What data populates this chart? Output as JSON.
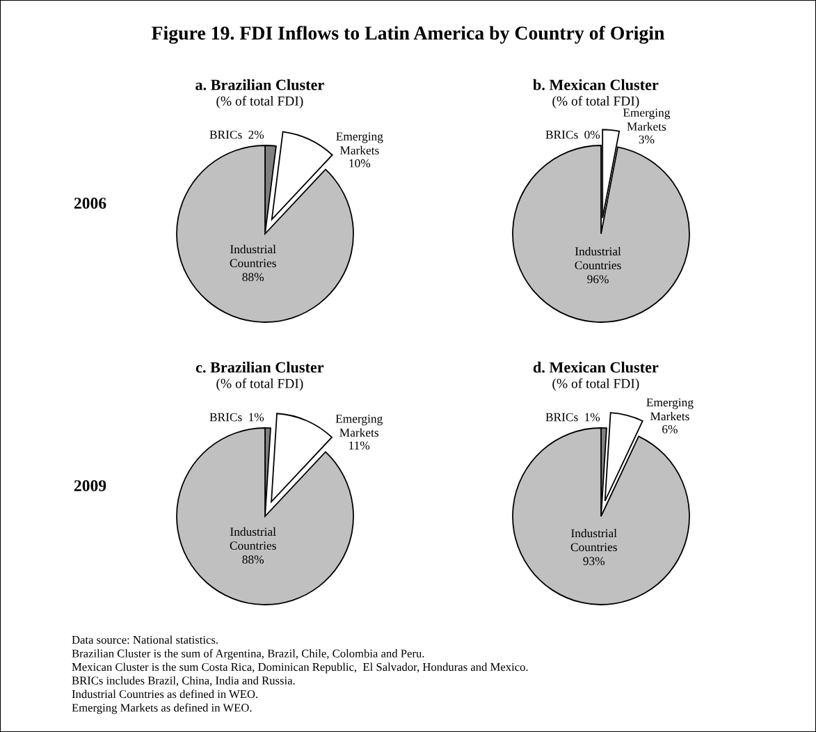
{
  "chart_data": [
    {
      "type": "other",
      "title": "Figure 19. FDI Inflows to Latin America by Country of Origin",
      "annotations": [
        "Data source: National statistics.",
        "Brazilian Cluster is the sum of Argentina, Brazil, Chile, Colombia and Peru.",
        "Mexican Cluster is the sum Costa Rica, Dominican Republic,  El Salvador, Honduras and Mexico.",
        "BRICs includes Brazil, China, India and Russia.",
        "Industrial Countries as defined in WEO.",
        "Emerging Markets as defined in WEO."
      ]
    },
    {
      "type": "pie",
      "title": "a. Brazilian Cluster",
      "subtitle": "(% of total FDI)",
      "categories": [
        "BRICs",
        "Emerging Markets",
        "Industrial Countries"
      ],
      "values": [
        2,
        10,
        88
      ],
      "value_labels": [
        "2%",
        "10%",
        "88%"
      ],
      "colors": [
        "#808080",
        "#ffffff",
        "#c0c0c0"
      ],
      "annotations": [
        "2006"
      ]
    },
    {
      "type": "pie",
      "title": "b. Mexican Cluster",
      "subtitle": "(% of total FDI)",
      "categories": [
        "BRICs",
        "Emerging Markets",
        "Industrial Countries"
      ],
      "values": [
        0,
        3,
        96
      ],
      "value_labels": [
        "0%",
        "3%",
        "96%"
      ],
      "colors": [
        "#808080",
        "#ffffff",
        "#c0c0c0"
      ]
    },
    {
      "type": "pie",
      "title": "c. Brazilian Cluster",
      "subtitle": "(% of total FDI)",
      "categories": [
        "BRICs",
        "Emerging Markets",
        "Industrial Countries"
      ],
      "values": [
        1,
        11,
        88
      ],
      "value_labels": [
        "1%",
        "11%",
        "88%"
      ],
      "colors": [
        "#808080",
        "#ffffff",
        "#c0c0c0"
      ],
      "annotations": [
        "2009"
      ]
    },
    {
      "type": "pie",
      "title": "d. Mexican Cluster",
      "subtitle": "(% of total FDI)",
      "categories": [
        "BRICs",
        "Emerging Markets",
        "Industrial Countries"
      ],
      "values": [
        1,
        6,
        93
      ],
      "value_labels": [
        "1%",
        "6%",
        "93%"
      ],
      "colors": [
        "#808080",
        "#ffffff",
        "#c0c0c0"
      ]
    }
  ]
}
